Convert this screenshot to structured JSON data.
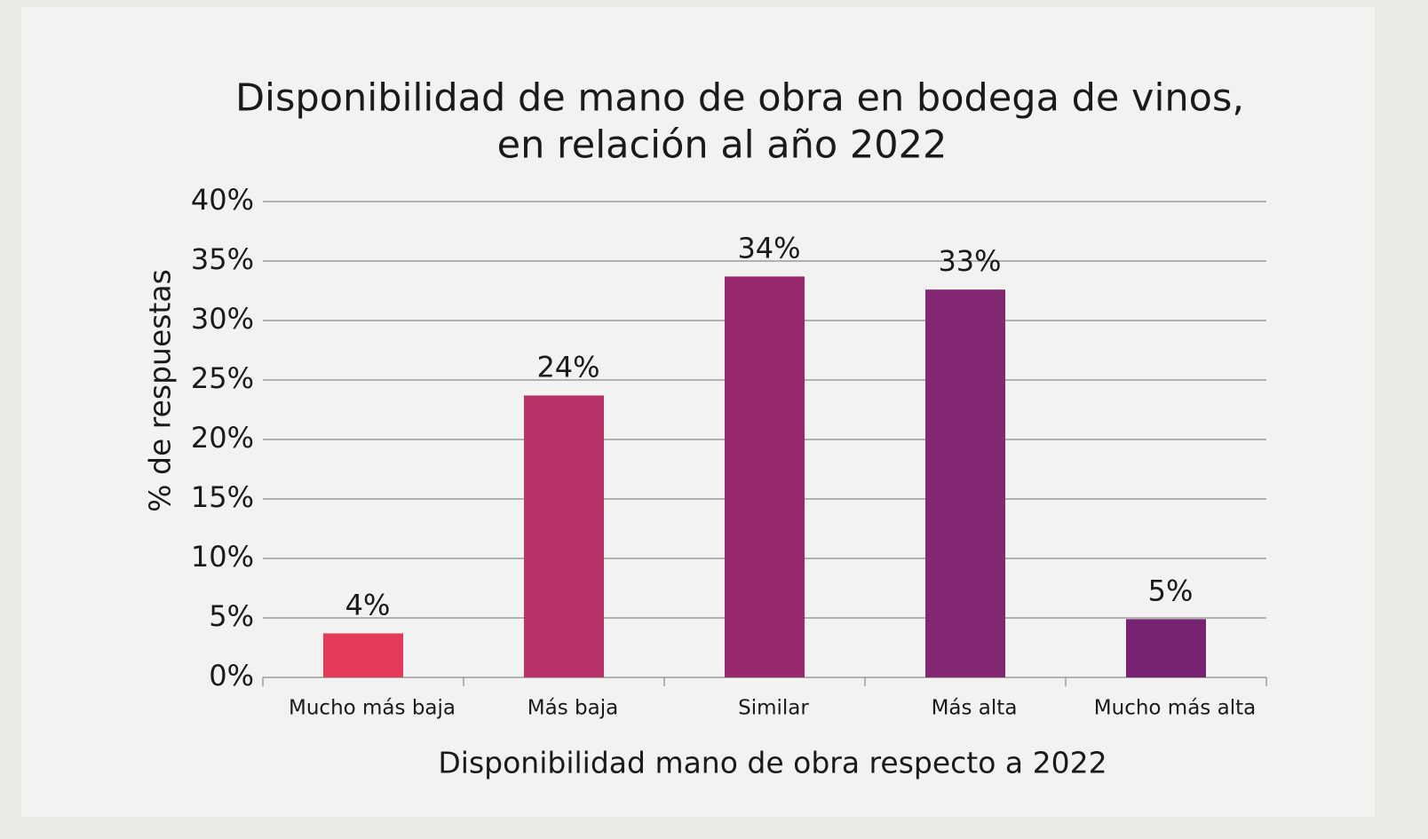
{
  "chart_data": {
    "type": "bar",
    "title": [
      "Disponibilidad de mano de obra en bodega de vinos,",
      "en relación al año 2022"
    ],
    "xlabel": "Disponibilidad mano de obra respecto a 2022",
    "ylabel": "% de respuestas",
    "categories": [
      "Mucho más baja",
      "Más baja",
      "Similar",
      "Más alta",
      "Mucho más alta"
    ],
    "values": [
      3.7,
      23.7,
      33.7,
      32.6,
      4.9
    ],
    "value_labels": [
      "4%",
      "24%",
      "34%",
      "33%",
      "5%"
    ],
    "colors": [
      "#e63a5b",
      "#b8336a",
      "#98296d",
      "#842773",
      "#762472"
    ],
    "ylim": [
      0,
      40
    ],
    "yticks": [
      {
        "value": 0,
        "label": "0%"
      },
      {
        "value": 5,
        "label": "5%"
      },
      {
        "value": 10,
        "label": "10%"
      },
      {
        "value": 15,
        "label": "15%"
      },
      {
        "value": 20,
        "label": "20%"
      },
      {
        "value": 25,
        "label": "25%"
      },
      {
        "value": 30,
        "label": "30%"
      },
      {
        "value": 35,
        "label": "35%"
      },
      {
        "value": 40,
        "label": "40%"
      }
    ],
    "grid": true
  }
}
